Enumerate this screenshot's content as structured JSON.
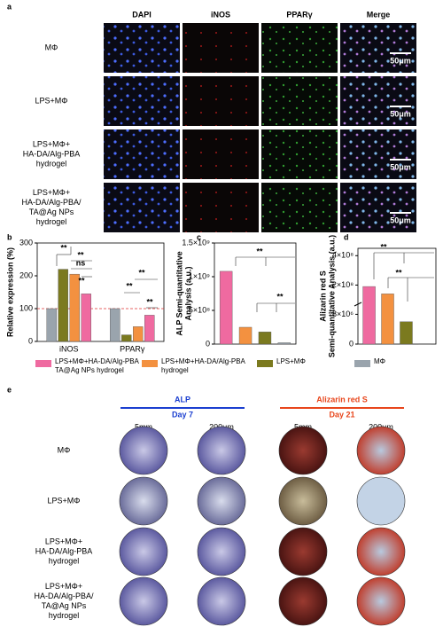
{
  "panel_labels": [
    "a",
    "b",
    "c",
    "d",
    "e"
  ],
  "panel_a": {
    "columns": [
      "DAPI",
      "iNOS",
      "PPARγ",
      "Merge"
    ],
    "rows": [
      [
        "MΦ"
      ],
      [
        "LPS+MΦ"
      ],
      [
        "LPS+MΦ+",
        "HA-DA/Alg-PBA",
        "hydrogel"
      ],
      [
        "LPS+MΦ+",
        "HA-DA/Alg-PBA/",
        "TA@Ag NPs",
        "hydrogel"
      ]
    ],
    "scale_bar": "50μm"
  },
  "chart_data": [
    {
      "type": "bar",
      "ylabel": [
        "Relative expression (%)"
      ],
      "categories": [
        "iNOS",
        "PPARγ"
      ],
      "series": [
        {
          "name": "MΦ",
          "color": "#9aa4ad",
          "values": [
            100,
            100
          ]
        },
        {
          "name": "LPS+MΦ",
          "color": "#7b7a1f",
          "values": [
            220,
            20
          ]
        },
        {
          "name": "LPS+MΦ+HA-DA/Alg-PBA hydrogel",
          "color": "#f39140",
          "values": [
            205,
            45
          ]
        },
        {
          "name": "LPS+MΦ+HA-DA/Alg-PBA TA@Ag NPs hydrogel",
          "color": "#ef6aa0",
          "values": [
            145,
            80
          ]
        }
      ],
      "ylim": [
        0,
        300
      ],
      "yticks": [
        0,
        100,
        200,
        300
      ],
      "reference_line": 100,
      "annotations": [
        "**",
        "**",
        "ns",
        "**",
        "**",
        "**",
        "**"
      ]
    },
    {
      "type": "bar",
      "ylabel": [
        "ALP Semi-quantitative",
        "Analysis (a.u.)"
      ],
      "series": [
        {
          "name": "LPS+MΦ+HA-DA/Alg-PBA TA@Ag NPs hydrogel",
          "color": "#ef6aa0",
          "values": [
            1080000000
          ]
        },
        {
          "name": "LPS+MΦ+HA-DA/Alg-PBA hydrogel",
          "color": "#f39140",
          "values": [
            250000000
          ]
        },
        {
          "name": "LPS+MΦ",
          "color": "#7b7a1f",
          "values": [
            180000000
          ]
        },
        {
          "name": "MΦ",
          "color": "#9aa4ad",
          "values": [
            20000000
          ]
        }
      ],
      "ylim": [
        0,
        1500000000
      ],
      "yticks": [
        0,
        {
          "value": 500000000,
          "label": "5×10⁸"
        },
        {
          "value": 1000000000,
          "label": "1×10⁹"
        },
        {
          "value": 1500000000,
          "label": "1.5×10⁹"
        }
      ],
      "annotations": [
        "**",
        "**"
      ]
    },
    {
      "type": "bar",
      "ylabel": [
        "Alizarin red S",
        "Semi-quantitative Analysis (a.u.)"
      ],
      "series": [
        {
          "name": "LPS+MΦ+HA-DA/Alg-PBA TA@Ag NPs hydrogel",
          "color": "#ef6aa0",
          "values": [
            190000000
          ]
        },
        {
          "name": "LPS+MΦ+HA-DA/Alg-PBA hydrogel",
          "color": "#f39140",
          "values": [
            140000000
          ]
        },
        {
          "name": "LPS+MΦ",
          "color": "#7b7a1f",
          "values": [
            6000000
          ]
        },
        {
          "name": "MΦ",
          "color": "#9aa4ad",
          "values": [
            100000
          ]
        }
      ],
      "ylim": [
        0,
        450000000
      ],
      "ybreak": [
        10000000,
        100000000
      ],
      "yticks": [
        0,
        {
          "value": 8000000,
          "label": "8×10⁶"
        },
        {
          "value": 200000000,
          "label": "2×10⁸"
        },
        {
          "value": 400000000,
          "label": "4×10⁸"
        }
      ],
      "annotations": [
        "**",
        "**"
      ]
    }
  ],
  "panel_e": {
    "assays": [
      {
        "name": "ALP",
        "day": "Day 7",
        "color": "#1b3fd0"
      },
      {
        "name": "Alizarin red S",
        "day": "Day 21",
        "color": "#e8461c"
      }
    ],
    "scales": [
      "5mm",
      "200μm"
    ]
  }
}
